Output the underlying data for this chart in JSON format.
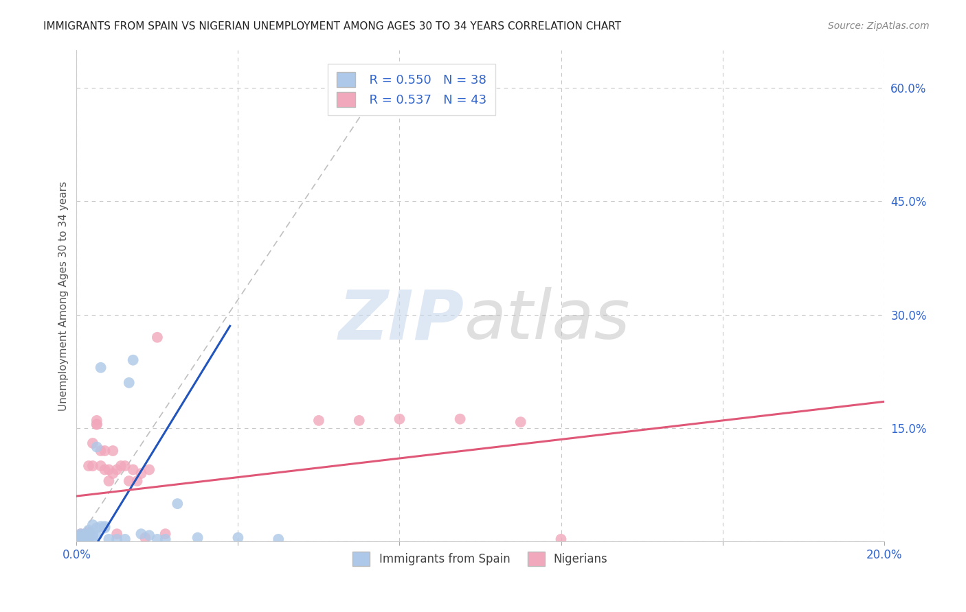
{
  "title": "IMMIGRANTS FROM SPAIN VS NIGERIAN UNEMPLOYMENT AMONG AGES 30 TO 34 YEARS CORRELATION CHART",
  "source": "Source: ZipAtlas.com",
  "ylabel": "Unemployment Among Ages 30 to 34 years",
  "xlim": [
    0.0,
    0.2
  ],
  "ylim": [
    0.0,
    0.65
  ],
  "x_ticks": [
    0.0,
    0.04,
    0.08,
    0.12,
    0.16,
    0.2
  ],
  "x_tick_labels": [
    "0.0%",
    "",
    "",
    "",
    "",
    "20.0%"
  ],
  "y_ticks_right": [
    0.0,
    0.15,
    0.3,
    0.45,
    0.6
  ],
  "y_tick_labels_right": [
    "",
    "15.0%",
    "30.0%",
    "45.0%",
    "60.0%"
  ],
  "background_color": "#ffffff",
  "grid_color": "#c8c8c8",
  "legend_r1": "R = 0.550",
  "legend_n1": "N = 38",
  "legend_r2": "R = 0.537",
  "legend_n2": "N = 43",
  "spain_color": "#adc8e8",
  "nigeria_color": "#f2a8bc",
  "spain_line_color": "#2255bb",
  "nigeria_line_color": "#e05878",
  "diagonal_color": "#c0c0c0",
  "spain_scatter": [
    [
      0.001,
      0.01
    ],
    [
      0.001,
      0.008
    ],
    [
      0.001,
      0.005
    ],
    [
      0.001,
      0.003
    ],
    [
      0.002,
      0.005
    ],
    [
      0.002,
      0.008
    ],
    [
      0.002,
      0.003
    ],
    [
      0.002,
      0.005
    ],
    [
      0.002,
      0.01
    ],
    [
      0.003,
      0.008
    ],
    [
      0.003,
      0.005
    ],
    [
      0.003,
      0.015
    ],
    [
      0.003,
      0.01
    ],
    [
      0.003,
      0.003
    ],
    [
      0.004,
      0.01
    ],
    [
      0.004,
      0.008
    ],
    [
      0.004,
      0.005
    ],
    [
      0.004,
      0.022
    ],
    [
      0.005,
      0.018
    ],
    [
      0.005,
      0.008
    ],
    [
      0.005,
      0.125
    ],
    [
      0.006,
      0.02
    ],
    [
      0.006,
      0.23
    ],
    [
      0.007,
      0.02
    ],
    [
      0.007,
      0.018
    ],
    [
      0.008,
      0.003
    ],
    [
      0.01,
      0.003
    ],
    [
      0.012,
      0.003
    ],
    [
      0.013,
      0.21
    ],
    [
      0.014,
      0.24
    ],
    [
      0.016,
      0.01
    ],
    [
      0.018,
      0.008
    ],
    [
      0.02,
      0.003
    ],
    [
      0.022,
      0.003
    ],
    [
      0.025,
      0.05
    ],
    [
      0.03,
      0.005
    ],
    [
      0.04,
      0.005
    ],
    [
      0.05,
      0.003
    ]
  ],
  "nigeria_scatter": [
    [
      0.001,
      0.005
    ],
    [
      0.001,
      0.008
    ],
    [
      0.001,
      0.005
    ],
    [
      0.001,
      0.01
    ],
    [
      0.002,
      0.008
    ],
    [
      0.002,
      0.006
    ],
    [
      0.002,
      0.01
    ],
    [
      0.002,
      0.005
    ],
    [
      0.003,
      0.008
    ],
    [
      0.003,
      0.012
    ],
    [
      0.003,
      0.005
    ],
    [
      0.003,
      0.1
    ],
    [
      0.004,
      0.1
    ],
    [
      0.004,
      0.13
    ],
    [
      0.005,
      0.155
    ],
    [
      0.005,
      0.16
    ],
    [
      0.005,
      0.155
    ],
    [
      0.006,
      0.12
    ],
    [
      0.006,
      0.1
    ],
    [
      0.007,
      0.12
    ],
    [
      0.007,
      0.095
    ],
    [
      0.008,
      0.095
    ],
    [
      0.008,
      0.08
    ],
    [
      0.009,
      0.12
    ],
    [
      0.009,
      0.09
    ],
    [
      0.01,
      0.095
    ],
    [
      0.01,
      0.01
    ],
    [
      0.011,
      0.1
    ],
    [
      0.012,
      0.1
    ],
    [
      0.013,
      0.08
    ],
    [
      0.014,
      0.095
    ],
    [
      0.015,
      0.08
    ],
    [
      0.016,
      0.09
    ],
    [
      0.017,
      0.005
    ],
    [
      0.018,
      0.095
    ],
    [
      0.02,
      0.27
    ],
    [
      0.022,
      0.01
    ],
    [
      0.06,
      0.16
    ],
    [
      0.07,
      0.16
    ],
    [
      0.08,
      0.162
    ],
    [
      0.095,
      0.162
    ],
    [
      0.11,
      0.158
    ],
    [
      0.12,
      0.003
    ]
  ],
  "spain_line": [
    [
      0.003,
      -0.02
    ],
    [
      0.038,
      0.285
    ]
  ],
  "nigeria_line": [
    [
      0.0,
      0.06
    ],
    [
      0.2,
      0.185
    ]
  ],
  "diagonal_line": [
    [
      0.0,
      0.0
    ],
    [
      0.075,
      0.6
    ]
  ]
}
